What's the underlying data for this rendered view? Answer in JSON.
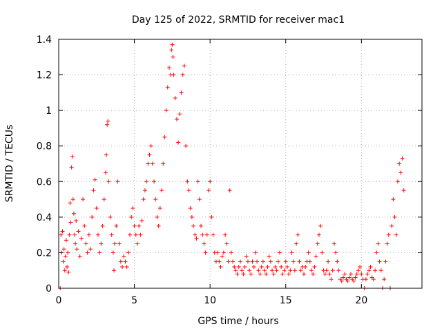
{
  "chart_data": {
    "type": "scatter",
    "title": "Day 125 of 2022, SRMTID for receiver mac1",
    "xlabel": "GPS time / hours",
    "ylabel": "SRMTID / TECUs",
    "xlim": [
      0,
      24
    ],
    "ylim": [
      0,
      1.4
    ],
    "grid": true,
    "marker": "+",
    "marker_color": "#ff0000",
    "x_ticks": [
      {
        "value": 0,
        "label": "0"
      },
      {
        "value": 5,
        "label": "5"
      },
      {
        "value": 10,
        "label": "10"
      },
      {
        "value": 15,
        "label": "15"
      },
      {
        "value": 20,
        "label": "20"
      }
    ],
    "y_ticks": [
      {
        "value": 0,
        "label": "0"
      },
      {
        "value": 0.2,
        "label": "0.2"
      },
      {
        "value": 0.4,
        "label": "0.4"
      },
      {
        "value": 0.6,
        "label": "0.6"
      },
      {
        "value": 0.8,
        "label": "0.8"
      },
      {
        "value": 1.0,
        "label": "1"
      },
      {
        "value": 1.2,
        "label": "1.2"
      },
      {
        "value": 1.4,
        "label": "1.4"
      }
    ],
    "series": [
      {
        "name": "SRMTID",
        "points": [
          [
            0.1,
            0.0
          ],
          [
            0.15,
            0.3
          ],
          [
            0.2,
            0.2
          ],
          [
            0.25,
            0.32
          ],
          [
            0.3,
            0.15
          ],
          [
            0.35,
            0.22
          ],
          [
            0.4,
            0.1
          ],
          [
            0.45,
            0.18
          ],
          [
            0.5,
            0.27
          ],
          [
            0.55,
            0.12
          ],
          [
            0.6,
            0.2
          ],
          [
            0.65,
            0.09
          ],
          [
            0.7,
            0.3
          ],
          [
            0.75,
            0.48
          ],
          [
            0.8,
            0.37
          ],
          [
            0.85,
            0.68
          ],
          [
            0.9,
            0.74
          ],
          [
            0.95,
            0.5
          ],
          [
            1.0,
            0.42
          ],
          [
            1.05,
            0.3
          ],
          [
            1.1,
            0.25
          ],
          [
            1.15,
            0.38
          ],
          [
            1.2,
            0.22
          ],
          [
            1.3,
            0.32
          ],
          [
            1.4,
            0.18
          ],
          [
            1.5,
            0.28
          ],
          [
            1.6,
            0.5
          ],
          [
            1.7,
            0.35
          ],
          [
            1.8,
            0.25
          ],
          [
            1.9,
            0.2
          ],
          [
            2.0,
            0.3
          ],
          [
            2.1,
            0.22
          ],
          [
            2.2,
            0.4
          ],
          [
            2.3,
            0.55
          ],
          [
            2.4,
            0.61
          ],
          [
            2.5,
            0.45
          ],
          [
            2.6,
            0.3
          ],
          [
            2.7,
            0.2
          ],
          [
            2.8,
            0.25
          ],
          [
            2.9,
            0.35
          ],
          [
            3.0,
            0.5
          ],
          [
            3.1,
            0.65
          ],
          [
            3.15,
            0.75
          ],
          [
            3.2,
            0.92
          ],
          [
            3.25,
            0.94
          ],
          [
            3.3,
            0.6
          ],
          [
            3.4,
            0.4
          ],
          [
            3.5,
            0.3
          ],
          [
            3.6,
            0.2
          ],
          [
            3.65,
            0.1
          ],
          [
            3.7,
            0.25
          ],
          [
            3.8,
            0.35
          ],
          [
            3.9,
            0.6
          ],
          [
            4.0,
            0.25
          ],
          [
            4.1,
            0.15
          ],
          [
            4.2,
            0.12
          ],
          [
            4.3,
            0.18
          ],
          [
            4.4,
            0.15
          ],
          [
            4.5,
            0.12
          ],
          [
            4.6,
            0.2
          ],
          [
            4.7,
            0.3
          ],
          [
            4.8,
            0.4
          ],
          [
            4.9,
            0.45
          ],
          [
            5.0,
            0.35
          ],
          [
            5.1,
            0.3
          ],
          [
            5.2,
            0.25
          ],
          [
            5.3,
            0.35
          ],
          [
            5.4,
            0.3
          ],
          [
            5.5,
            0.38
          ],
          [
            5.6,
            0.5
          ],
          [
            5.7,
            0.55
          ],
          [
            5.8,
            0.6
          ],
          [
            5.9,
            0.7
          ],
          [
            6.0,
            0.75
          ],
          [
            6.1,
            0.8
          ],
          [
            6.2,
            0.7
          ],
          [
            6.3,
            0.6
          ],
          [
            6.4,
            0.5
          ],
          [
            6.5,
            0.4
          ],
          [
            6.6,
            0.35
          ],
          [
            6.7,
            0.45
          ],
          [
            6.8,
            0.55
          ],
          [
            6.9,
            0.7
          ],
          [
            7.0,
            0.85
          ],
          [
            7.1,
            1.0
          ],
          [
            7.2,
            1.13
          ],
          [
            7.3,
            1.24
          ],
          [
            7.4,
            1.2
          ],
          [
            7.45,
            1.34
          ],
          [
            7.5,
            1.37
          ],
          [
            7.55,
            1.3
          ],
          [
            7.6,
            1.2
          ],
          [
            7.7,
            1.07
          ],
          [
            7.8,
            0.95
          ],
          [
            7.9,
            0.82
          ],
          [
            8.0,
            0.98
          ],
          [
            8.1,
            1.1
          ],
          [
            8.2,
            1.2
          ],
          [
            8.3,
            1.25
          ],
          [
            8.4,
            0.8
          ],
          [
            8.5,
            0.6
          ],
          [
            8.6,
            0.55
          ],
          [
            8.7,
            0.45
          ],
          [
            8.8,
            0.4
          ],
          [
            8.9,
            0.35
          ],
          [
            9.0,
            0.3
          ],
          [
            9.1,
            0.28
          ],
          [
            9.2,
            0.6
          ],
          [
            9.3,
            0.5
          ],
          [
            9.4,
            0.35
          ],
          [
            9.5,
            0.3
          ],
          [
            9.6,
            0.25
          ],
          [
            9.7,
            0.2
          ],
          [
            9.8,
            0.3
          ],
          [
            9.9,
            0.55
          ],
          [
            10.0,
            0.6
          ],
          [
            10.1,
            0.4
          ],
          [
            10.2,
            0.3
          ],
          [
            10.3,
            0.2
          ],
          [
            10.4,
            0.15
          ],
          [
            10.5,
            0.2
          ],
          [
            10.6,
            0.15
          ],
          [
            10.7,
            0.12
          ],
          [
            10.8,
            0.18
          ],
          [
            10.9,
            0.2
          ],
          [
            11.0,
            0.3
          ],
          [
            11.1,
            0.25
          ],
          [
            11.2,
            0.15
          ],
          [
            11.3,
            0.55
          ],
          [
            11.4,
            0.2
          ],
          [
            11.5,
            0.15
          ],
          [
            11.6,
            0.12
          ],
          [
            11.7,
            0.1
          ],
          [
            11.8,
            0.08
          ],
          [
            11.9,
            0.12
          ],
          [
            12.0,
            0.15
          ],
          [
            12.1,
            0.1
          ],
          [
            12.2,
            0.08
          ],
          [
            12.3,
            0.12
          ],
          [
            12.4,
            0.18
          ],
          [
            12.5,
            0.15
          ],
          [
            12.6,
            0.1
          ],
          [
            12.7,
            0.08
          ],
          [
            12.8,
            0.15
          ],
          [
            12.9,
            0.12
          ],
          [
            13.0,
            0.2
          ],
          [
            13.1,
            0.15
          ],
          [
            13.2,
            0.1
          ],
          [
            13.3,
            0.08
          ],
          [
            13.4,
            0.12
          ],
          [
            13.5,
            0.15
          ],
          [
            13.6,
            0.1
          ],
          [
            13.7,
            0.08
          ],
          [
            13.8,
            0.12
          ],
          [
            13.9,
            0.18
          ],
          [
            14.0,
            0.15
          ],
          [
            14.1,
            0.1
          ],
          [
            14.2,
            0.08
          ],
          [
            14.3,
            0.12
          ],
          [
            14.4,
            0.1
          ],
          [
            14.5,
            0.15
          ],
          [
            14.6,
            0.2
          ],
          [
            14.7,
            0.12
          ],
          [
            14.8,
            0.08
          ],
          [
            14.9,
            0.1
          ],
          [
            15.0,
            0.15
          ],
          [
            15.1,
            0.12
          ],
          [
            15.2,
            0.08
          ],
          [
            15.3,
            0.1
          ],
          [
            15.4,
            0.2
          ],
          [
            15.5,
            0.15
          ],
          [
            15.6,
            0.1
          ],
          [
            15.7,
            0.25
          ],
          [
            15.8,
            0.3
          ],
          [
            15.9,
            0.15
          ],
          [
            16.0,
            0.1
          ],
          [
            16.1,
            0.12
          ],
          [
            16.2,
            0.08
          ],
          [
            16.3,
            0.12
          ],
          [
            16.4,
            0.15
          ],
          [
            16.5,
            0.2
          ],
          [
            16.6,
            0.15
          ],
          [
            16.7,
            0.1
          ],
          [
            16.8,
            0.08
          ],
          [
            16.9,
            0.12
          ],
          [
            17.0,
            0.18
          ],
          [
            17.1,
            0.25
          ],
          [
            17.2,
            0.3
          ],
          [
            17.3,
            0.35
          ],
          [
            17.4,
            0.2
          ],
          [
            17.5,
            0.1
          ],
          [
            17.6,
            0.08
          ],
          [
            17.7,
            0.1
          ],
          [
            17.8,
            0.15
          ],
          [
            17.9,
            0.08
          ],
          [
            18.0,
            0.05
          ],
          [
            18.1,
            0.1
          ],
          [
            18.2,
            0.25
          ],
          [
            18.3,
            0.2
          ],
          [
            18.4,
            0.15
          ],
          [
            18.5,
            0.1
          ],
          [
            18.6,
            0.05
          ],
          [
            18.7,
            0.04
          ],
          [
            18.8,
            0.06
          ],
          [
            18.9,
            0.08
          ],
          [
            19.0,
            0.05
          ],
          [
            19.1,
            0.04
          ],
          [
            19.2,
            0.06
          ],
          [
            19.3,
            0.08
          ],
          [
            19.4,
            0.05
          ],
          [
            19.5,
            0.04
          ],
          [
            19.6,
            0.06
          ],
          [
            19.7,
            0.08
          ],
          [
            19.8,
            0.1
          ],
          [
            19.9,
            0.12
          ],
          [
            20.0,
            0.08
          ],
          [
            20.1,
            0.05
          ],
          [
            20.2,
            0.0
          ],
          [
            20.3,
            0.05
          ],
          [
            20.4,
            0.08
          ],
          [
            20.5,
            0.1
          ],
          [
            20.6,
            0.12
          ],
          [
            20.7,
            0.06
          ],
          [
            20.8,
            0.05
          ],
          [
            20.9,
            0.1
          ],
          [
            21.0,
            0.2
          ],
          [
            21.1,
            0.25
          ],
          [
            21.2,
            0.15
          ],
          [
            21.3,
            0.1
          ],
          [
            21.4,
            0.0
          ],
          [
            21.5,
            0.05
          ],
          [
            21.6,
            0.15
          ],
          [
            21.7,
            0.25
          ],
          [
            21.8,
            0.3
          ],
          [
            21.9,
            0.0
          ],
          [
            22.0,
            0.35
          ],
          [
            22.1,
            0.5
          ],
          [
            22.2,
            0.4
          ],
          [
            22.3,
            0.3
          ],
          [
            22.4,
            0.6
          ],
          [
            22.5,
            0.7
          ],
          [
            22.6,
            0.65
          ],
          [
            22.7,
            0.73
          ],
          [
            22.8,
            0.55
          ]
        ]
      }
    ]
  }
}
